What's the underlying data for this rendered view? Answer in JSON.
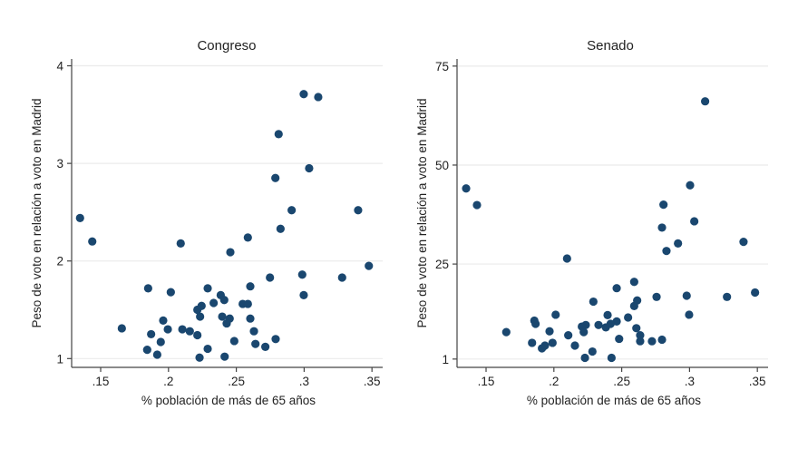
{
  "chart_data": [
    {
      "type": "scatter",
      "title": "Congreso",
      "xlabel": "% población de más de 65 años",
      "ylabel": "Peso de voto en relación a voto en Madrid",
      "xticks": [
        0.15,
        0.2,
        0.25,
        0.3,
        0.35
      ],
      "xtick_labels": [
        ".15",
        ".2",
        ".25",
        ".3",
        ".35"
      ],
      "yticks": [
        1,
        2,
        3,
        4
      ],
      "ytick_labels": [
        "1",
        "2",
        "3",
        "4"
      ],
      "xlim": [
        0.1286,
        0.3579
      ],
      "ylim": [
        0.91,
        4.07
      ],
      "grid": "horizontal",
      "marker_color": "#1a476f",
      "points": [
        [
          0.2997,
          3.71
        ],
        [
          0.3104,
          3.68
        ],
        [
          0.2812,
          3.3
        ],
        [
          0.3037,
          2.95
        ],
        [
          0.2788,
          2.85
        ],
        [
          0.2908,
          2.52
        ],
        [
          0.3398,
          2.52
        ],
        [
          0.1348,
          2.44
        ],
        [
          0.2826,
          2.33
        ],
        [
          0.1438,
          2.2
        ],
        [
          0.209,
          2.18
        ],
        [
          0.2585,
          2.24
        ],
        [
          0.2456,
          2.09
        ],
        [
          0.3477,
          1.95
        ],
        [
          0.2986,
          1.86
        ],
        [
          0.2748,
          1.83
        ],
        [
          0.328,
          1.83
        ],
        [
          0.185,
          1.72
        ],
        [
          0.2017,
          1.68
        ],
        [
          0.2289,
          1.72
        ],
        [
          0.2603,
          1.74
        ],
        [
          0.2997,
          1.65
        ],
        [
          0.2385,
          1.65
        ],
        [
          0.2411,
          1.6
        ],
        [
          0.2333,
          1.57
        ],
        [
          0.2244,
          1.54
        ],
        [
          0.2213,
          1.5
        ],
        [
          0.2233,
          1.43
        ],
        [
          0.2547,
          1.56
        ],
        [
          0.2585,
          1.56
        ],
        [
          0.2396,
          1.43
        ],
        [
          0.2451,
          1.41
        ],
        [
          0.2429,
          1.36
        ],
        [
          0.2603,
          1.41
        ],
        [
          0.1961,
          1.39
        ],
        [
          0.1656,
          1.31
        ],
        [
          0.1995,
          1.3
        ],
        [
          0.2102,
          1.3
        ],
        [
          0.2157,
          1.28
        ],
        [
          0.2213,
          1.24
        ],
        [
          0.1872,
          1.25
        ],
        [
          0.263,
          1.28
        ],
        [
          0.1943,
          1.17
        ],
        [
          0.2485,
          1.18
        ],
        [
          0.2641,
          1.15
        ],
        [
          0.2714,
          1.12
        ],
        [
          0.279,
          1.2
        ],
        [
          0.1843,
          1.09
        ],
        [
          0.2289,
          1.1
        ],
        [
          0.1917,
          1.04
        ],
        [
          0.2229,
          1.01
        ],
        [
          0.2414,
          1.02
        ]
      ]
    },
    {
      "type": "scatter",
      "title": "Senado",
      "xlabel": "% población de más de 65 años",
      "ylabel": "Peso de voto en relación a voto en Madrid",
      "xticks": [
        0.15,
        0.2,
        0.25,
        0.3,
        0.35
      ],
      "xtick_labels": [
        ".15",
        ".2",
        ".25",
        ".3",
        ".35"
      ],
      "yticks": [
        1,
        25,
        50,
        75
      ],
      "ytick_labels": [
        "1",
        "25",
        "50",
        "75"
      ],
      "xlim": [
        0.1286,
        0.3579
      ],
      "ylim": [
        -1.1,
        76.8
      ],
      "grid": "horizontal",
      "marker_color": "#1a476f",
      "points": [
        [
          0.3115,
          66.1
        ],
        [
          0.1353,
          44.1
        ],
        [
          0.1433,
          39.9
        ],
        [
          0.3004,
          44.9
        ],
        [
          0.2808,
          40.0
        ],
        [
          0.3035,
          35.8
        ],
        [
          0.2797,
          34.2
        ],
        [
          0.2915,
          30.2
        ],
        [
          0.3398,
          30.6
        ],
        [
          0.283,
          28.3
        ],
        [
          0.2097,
          26.4
        ],
        [
          0.2592,
          20.5
        ],
        [
          0.2463,
          18.9
        ],
        [
          0.3483,
          17.8
        ],
        [
          0.2757,
          16.7
        ],
        [
          0.2979,
          17.0
        ],
        [
          0.3276,
          16.7
        ],
        [
          0.2291,
          15.5
        ],
        [
          0.2614,
          15.8
        ],
        [
          0.2592,
          14.4
        ],
        [
          0.2997,
          12.2
        ],
        [
          0.2013,
          12.2
        ],
        [
          0.2396,
          12.1
        ],
        [
          0.2547,
          11.5
        ],
        [
          0.1856,
          10.7
        ],
        [
          0.1865,
          9.9
        ],
        [
          0.2463,
          10.5
        ],
        [
          0.2418,
          9.9
        ],
        [
          0.2329,
          9.6
        ],
        [
          0.2235,
          9.6
        ],
        [
          0.2206,
          9.2
        ],
        [
          0.222,
          7.8
        ],
        [
          0.2383,
          9.0
        ],
        [
          0.2608,
          8.8
        ],
        [
          0.1968,
          8.0
        ],
        [
          0.1649,
          7.8
        ],
        [
          0.2106,
          7.0
        ],
        [
          0.2636,
          7.0
        ],
        [
          0.2481,
          6.1
        ],
        [
          0.2636,
          5.5
        ],
        [
          0.2723,
          5.5
        ],
        [
          0.2797,
          5.9
        ],
        [
          0.1839,
          5.1
        ],
        [
          0.199,
          5.1
        ],
        [
          0.1934,
          4.4
        ],
        [
          0.1912,
          3.7
        ],
        [
          0.2155,
          4.4
        ],
        [
          0.2284,
          2.9
        ],
        [
          0.2229,
          1.3
        ],
        [
          0.2425,
          1.3
        ]
      ]
    }
  ]
}
